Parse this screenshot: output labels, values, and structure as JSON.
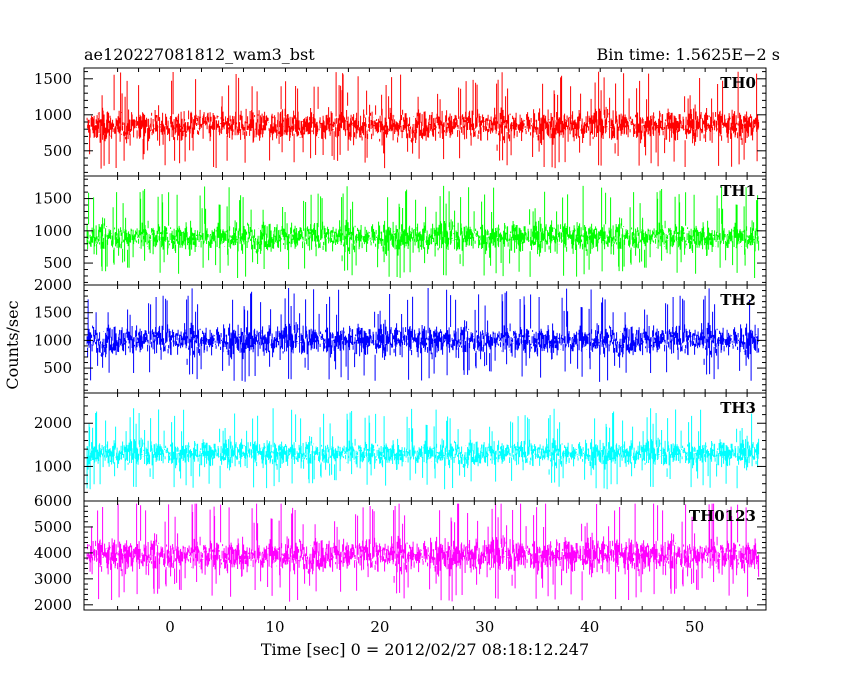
{
  "chart_data": {
    "type": "line",
    "title_left": "ae120227081812_wam3_bst",
    "title_right": "Bin time: 1.5625E−2 s",
    "xlabel": "Time [sec] 0 = 2012/02/27 08:18:12.247",
    "ylabel": "Counts/sec",
    "xlim": [
      -8.2,
      56.8
    ],
    "x_ticks": [
      0,
      10,
      20,
      30,
      40,
      50
    ],
    "x_tick_labels": [
      "0",
      "10",
      "20",
      "30",
      "40",
      "50"
    ],
    "data_x_range": [
      -7.9,
      56.1
    ],
    "grid": false,
    "panels": [
      {
        "name": "TH0",
        "color": "#ff0000",
        "ylim": [
          150,
          1650
        ],
        "y_ticks": [
          500,
          1000,
          1500
        ],
        "y_tick_labels": [
          "500",
          "1000",
          "1500"
        ],
        "mean": 850,
        "spread": 300,
        "max_peak": 1650,
        "min_trough": 150
      },
      {
        "name": "TH1",
        "color": "#00ff00",
        "ylim": [
          160,
          1850
        ],
        "y_ticks": [
          500,
          1000,
          1500
        ],
        "y_tick_labels": [
          "500",
          "1000",
          "1500"
        ],
        "mean": 900,
        "spread": 320,
        "max_peak": 1800,
        "min_trough": 150
      },
      {
        "name": "TH2",
        "color": "#0000ff",
        "ylim": [
          50,
          2000
        ],
        "y_ticks": [
          500,
          1000,
          1500,
          2000
        ],
        "y_tick_labels": [
          "500",
          "1000",
          "1500",
          "2000"
        ],
        "mean": 1000,
        "spread": 380,
        "max_peak": 2000,
        "min_trough": 100
      },
      {
        "name": "TH3",
        "color": "#00ffff",
        "ylim": [
          200,
          2700
        ],
        "y_ticks": [
          1000,
          2000
        ],
        "y_tick_labels": [
          "1000",
          "2000"
        ],
        "mean": 1300,
        "spread": 420,
        "max_peak": 2600,
        "min_trough": 200
      },
      {
        "name": "TH0123",
        "color": "#ff00ff",
        "ylim": [
          1800,
          6000
        ],
        "y_ticks": [
          2000,
          3000,
          4000,
          5000,
          6000
        ],
        "y_tick_labels": [
          "2000",
          "3000",
          "4000",
          "5000",
          "6000"
        ],
        "mean": 3900,
        "spread": 900,
        "max_peak": 5900,
        "min_trough": 1900
      }
    ]
  }
}
